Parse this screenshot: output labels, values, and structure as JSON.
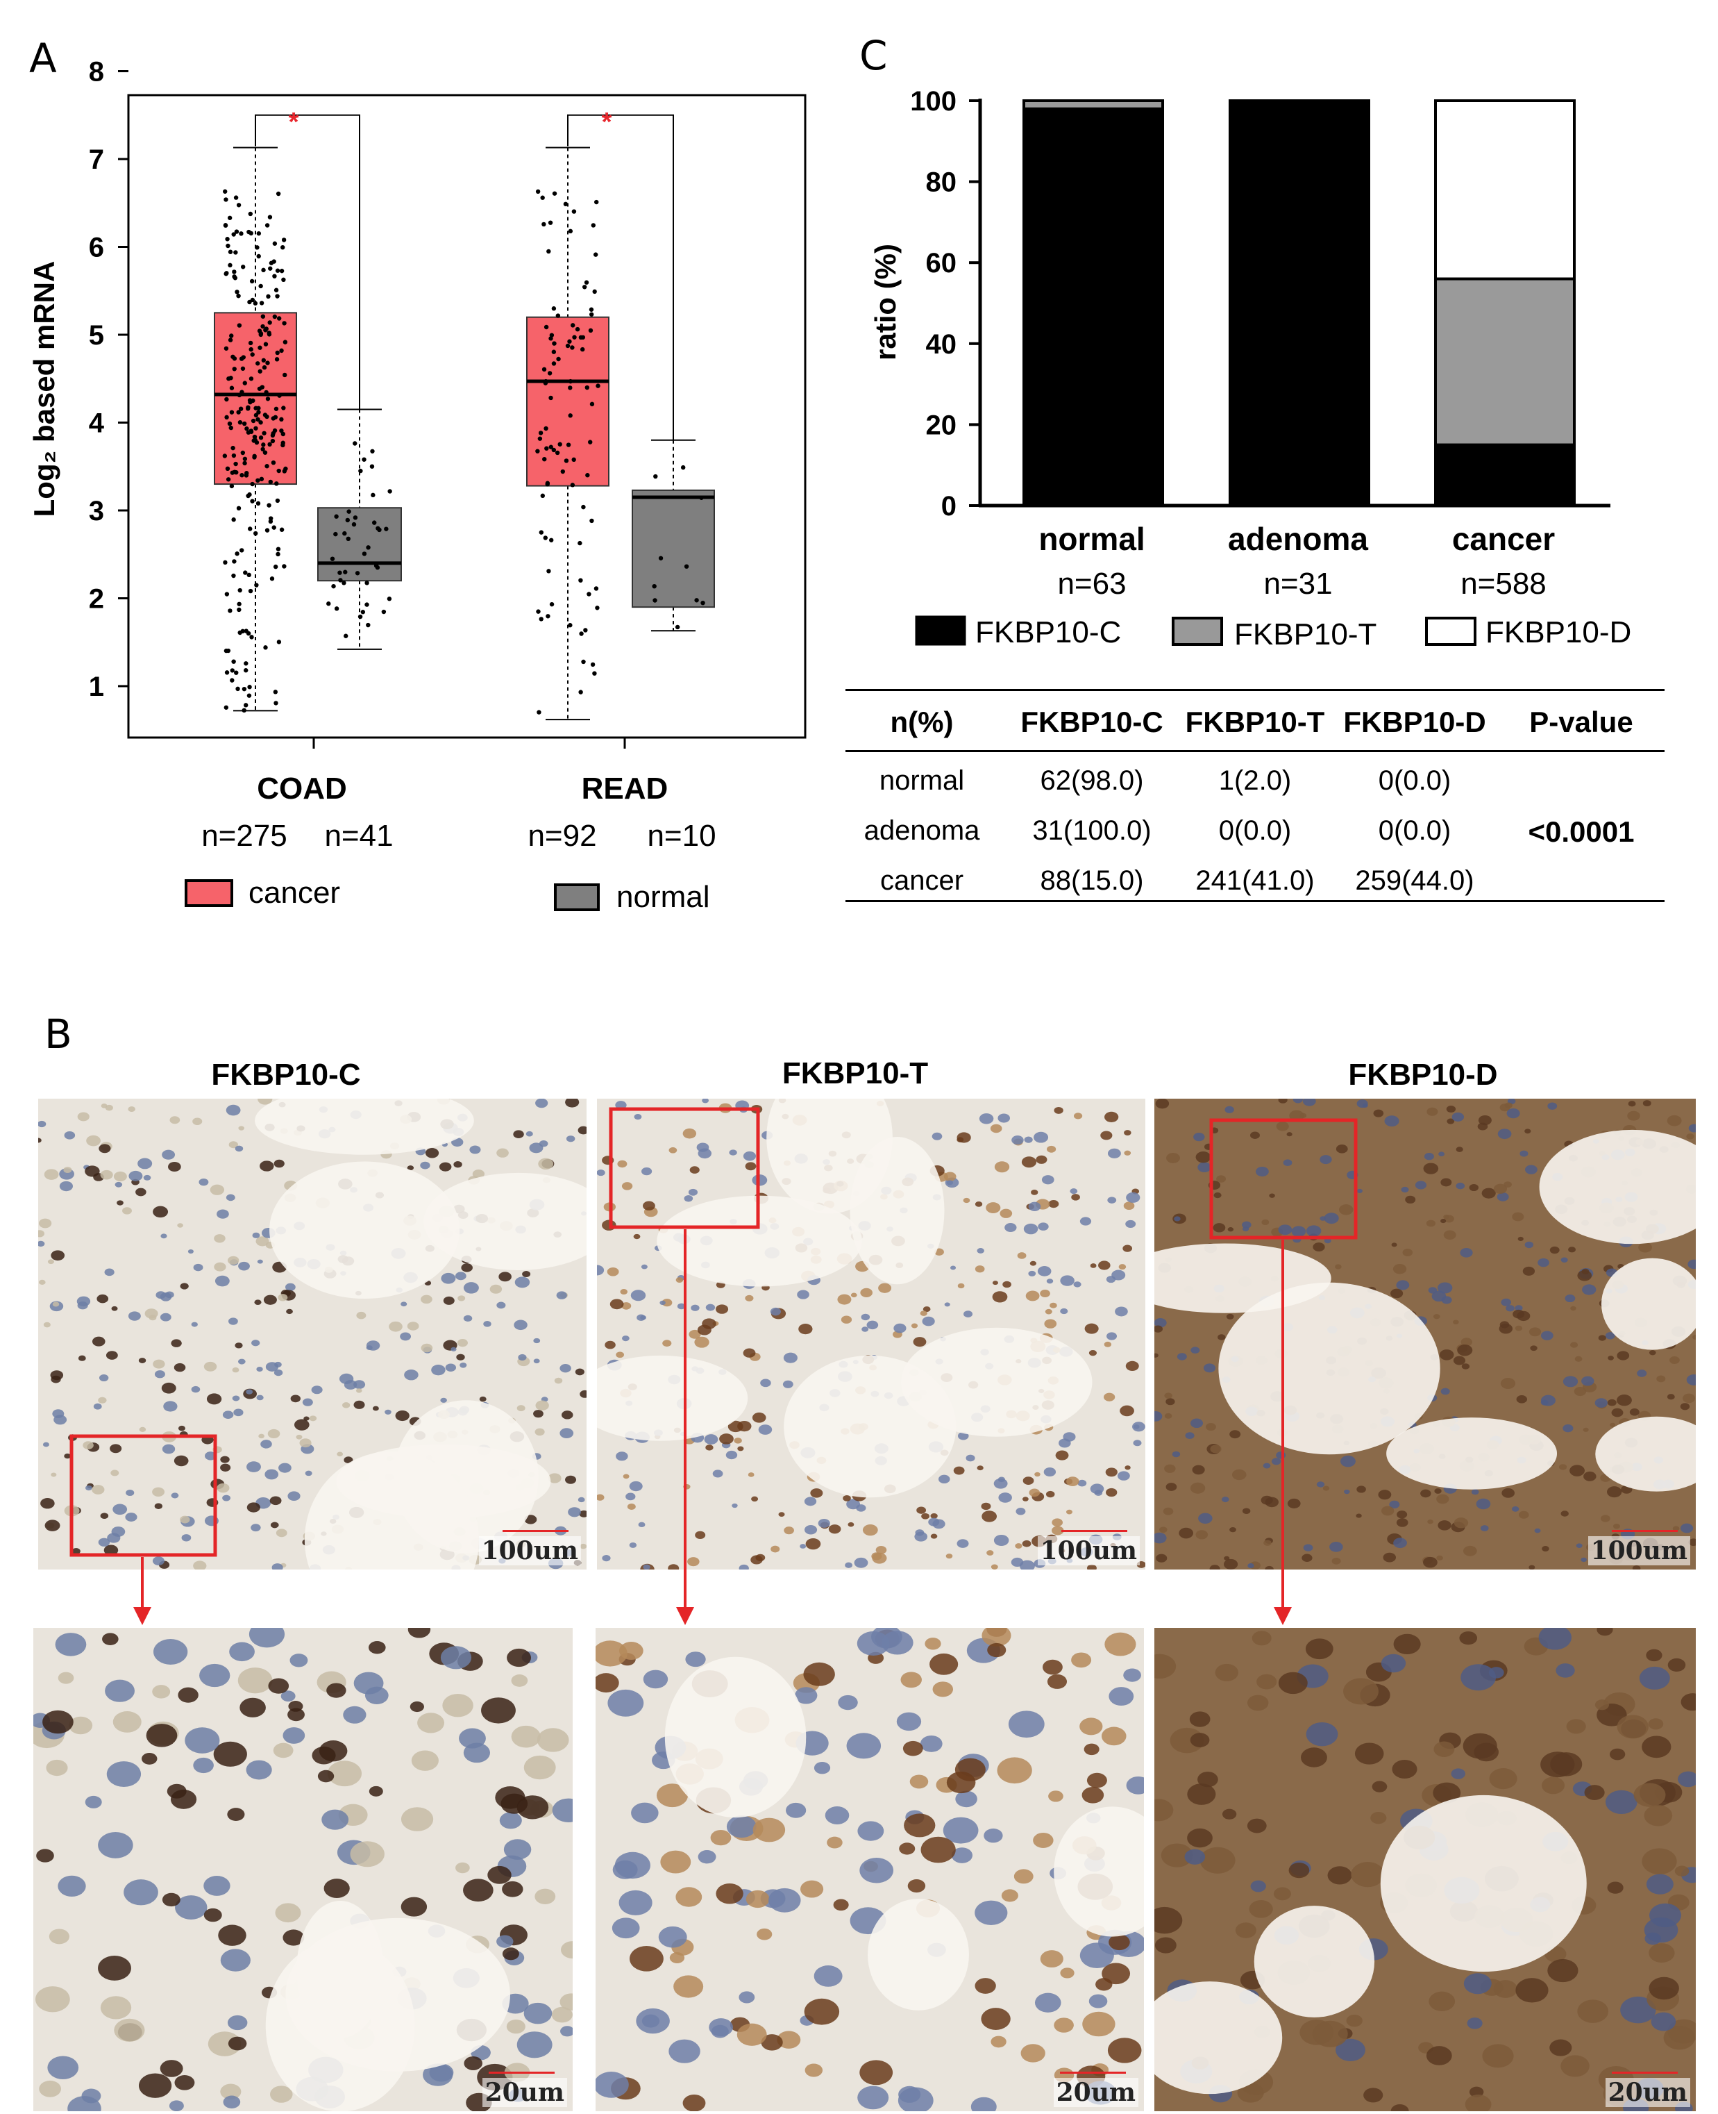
{
  "panels": {
    "a": "A",
    "b": "B",
    "c": "C"
  },
  "panel_a": {
    "ylabel": "Log₂ based mRNA",
    "yticks": [
      "1",
      "2",
      "3",
      "4",
      "5",
      "6",
      "7",
      "8"
    ],
    "groups": [
      {
        "label": "COAD",
        "n_cancer": "n=275",
        "n_normal": "n=41"
      },
      {
        "label": "READ",
        "n_cancer": "n=92",
        "n_normal": "n=10"
      }
    ],
    "sig_marker": "*",
    "legend": {
      "cancer": "cancer",
      "normal": "normal"
    },
    "colors": {
      "cancer": "#f6636a",
      "normal": "#7f7f7f",
      "sig": "#e8262d"
    }
  },
  "panel_b": {
    "titles": [
      "FKBP10-C",
      "FKBP10-T",
      "FKBP10-D"
    ],
    "scale_top": "100um",
    "scale_bottom": "20um",
    "colors": {
      "box": "#e42527",
      "arrow": "#e42527"
    }
  },
  "panel_c": {
    "ylabel": "ratio (%)",
    "yticks": [
      "0",
      "20",
      "40",
      "60",
      "80",
      "100"
    ],
    "legend": [
      "FKBP10-C",
      "FKBP10-T",
      "FKBP10-D"
    ],
    "categories": [
      {
        "label": "normal",
        "n": "n=63"
      },
      {
        "label": "adenoma",
        "n": "n=31"
      },
      {
        "label": "cancer",
        "n": "n=588"
      }
    ],
    "table": {
      "headers": [
        "n(%)",
        "FKBP10-C",
        "FKBP10-T",
        "FKBP10-D",
        "P-value"
      ],
      "rows": [
        [
          "normal",
          "62(98.0)",
          "1(2.0)",
          "0(0.0)",
          ""
        ],
        [
          "adenoma",
          "31(100.0)",
          "0(0.0)",
          "0(0.0)",
          "<0.0001"
        ],
        [
          "cancer",
          "88(15.0)",
          "241(41.0)",
          "259(44.0)",
          ""
        ]
      ]
    }
  },
  "chart_data": [
    {
      "type": "box",
      "ylabel": "Log₂ based mRNA",
      "ylim": [
        0.5,
        8
      ],
      "categories": [
        "COAD",
        "READ"
      ],
      "series": [
        {
          "name": "cancer",
          "boxes": [
            {
              "group": "COAD",
              "min": 0.72,
              "q1": 3.3,
              "median": 4.32,
              "q3": 5.25,
              "max": 7.13
            },
            {
              "group": "READ",
              "min": 0.62,
              "q1": 3.28,
              "median": 4.47,
              "q3": 5.2,
              "max": 7.13
            }
          ]
        },
        {
          "name": "normal",
          "boxes": [
            {
              "group": "COAD",
              "min": 1.42,
              "q1": 2.2,
              "median": 2.4,
              "q3": 3.03,
              "max": 4.15
            },
            {
              "group": "READ",
              "min": 1.63,
              "q1": 1.9,
              "median": 3.15,
              "q3": 3.23,
              "max": 3.8
            }
          ]
        }
      ],
      "significance": [
        "*",
        "*"
      ]
    },
    {
      "type": "bar",
      "stacked": true,
      "ylabel": "ratio (%)",
      "ylim": [
        0,
        100
      ],
      "categories": [
        "normal",
        "adenoma",
        "cancer"
      ],
      "series": [
        {
          "name": "FKBP10-C",
          "values": [
            98.0,
            100.0,
            15.0
          ]
        },
        {
          "name": "FKBP10-T",
          "values": [
            2.0,
            0.0,
            41.0
          ]
        },
        {
          "name": "FKBP10-D",
          "values": [
            0.0,
            0.0,
            44.0
          ]
        }
      ]
    }
  ]
}
